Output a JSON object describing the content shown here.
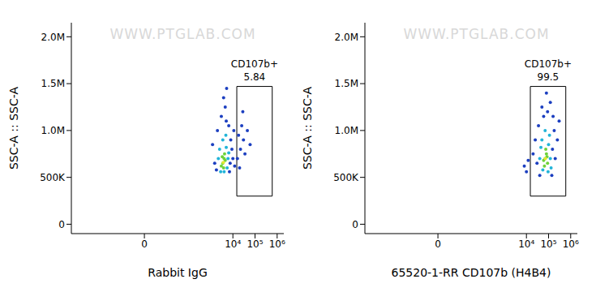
{
  "chart_data": [
    {
      "type": "scatter",
      "watermark": "WWW.PTGLAB.COM",
      "xlabel": "Rabbit IgG",
      "ylabel": "SSC-A :: SSC-A",
      "log": "x",
      "grid": false,
      "xlim": [
        -2000,
        2000000
      ],
      "xticks": [
        0,
        {
          "value": 10000,
          "label": "10⁴"
        },
        {
          "value": 100000,
          "label": "10⁵"
        },
        {
          "value": 1000000,
          "label": "10⁶"
        }
      ],
      "ylim": [
        -100000,
        2150000
      ],
      "yticks": [
        0,
        {
          "value": 500000,
          "label": "500K"
        },
        {
          "value": 1000000,
          "label": "1.0M"
        },
        {
          "value": 1500000,
          "label": "1.5M"
        },
        {
          "value": 2000000,
          "label": "2.0M"
        }
      ],
      "gate": {
        "label": "CD107b+",
        "value": 5.84,
        "xlim": [
          15000,
          600000
        ],
        "ylim": [
          300000,
          1470000
        ]
      },
      "x": [
        3500,
        4000,
        3000,
        4500,
        3800,
        4200,
        3300,
        3700,
        2500,
        5000,
        6000,
        2800,
        5500,
        3500,
        4800,
        2200,
        6500,
        4000,
        1500,
        1200,
        7500,
        8000,
        2000,
        5000,
        6500,
        3000,
        9000,
        1800,
        7000,
        4500,
        3800,
        5200,
        10000,
        11000,
        12000,
        16000,
        18000,
        22000,
        25000,
        30000,
        35000,
        45000,
        60000,
        20000,
        28000
      ],
      "values": [
        650000,
        700000,
        620000,
        680000,
        600000,
        750000,
        720000,
        660000,
        800000,
        820000,
        700000,
        560000,
        600000,
        900000,
        950000,
        700000,
        760000,
        560000,
        650000,
        850000,
        650000,
        900000,
        1000000,
        1100000,
        1050000,
        1150000,
        800000,
        580000,
        560000,
        1250000,
        1350000,
        1450000,
        700000,
        1000000,
        620000,
        700000,
        950000,
        800000,
        1050000,
        900000,
        750000,
        1000000,
        850000,
        600000,
        1200000
      ],
      "colors": [
        "#6fd23a",
        "#6fd23a",
        "#6fd23a",
        "#6fd23a",
        "#6fd23a",
        "#6fd23a",
        "#6fd23a",
        "#e6e832",
        "#22b4d8",
        "#22b4d8",
        "#22b4d8",
        "#22b4d8",
        "#22b4d8",
        "#22b4d8",
        "#22b4d8",
        "#22b4d8",
        "#22b4d8",
        "#22b4d8",
        "#1c3fc0",
        "#1c3fc0",
        "#1c3fc0",
        "#1c3fc0",
        "#1c3fc0",
        "#1c3fc0",
        "#1c3fc0",
        "#1c3fc0",
        "#1c3fc0",
        "#1c3fc0",
        "#1c3fc0",
        "#1c3fc0",
        "#1c3fc0",
        "#1c3fc0",
        "#1c3fc0",
        "#1c3fc0",
        "#1c3fc0",
        "#1c3fc0",
        "#1c3fc0",
        "#1c3fc0",
        "#1c3fc0",
        "#1c3fc0",
        "#1c3fc0",
        "#1c3fc0",
        "#1c3fc0",
        "#1c3fc0",
        "#1c3fc0"
      ]
    },
    {
      "type": "scatter",
      "watermark": "WWW.PTGLAB.COM",
      "xlabel": "65520-1-RR CD107b (H4B4)",
      "ylabel": "SSC-A :: SSC-A",
      "log": "x",
      "grid": false,
      "xlim": [
        -2000,
        2000000
      ],
      "xticks": [
        0,
        {
          "value": 10000,
          "label": "10⁴"
        },
        {
          "value": 100000,
          "label": "10⁵"
        },
        {
          "value": 1000000,
          "label": "10⁶"
        }
      ],
      "ylim": [
        -100000,
        2150000
      ],
      "yticks": [
        0,
        {
          "value": 500000,
          "label": "500K"
        },
        {
          "value": 1000000,
          "label": "1.0M"
        },
        {
          "value": 1500000,
          "label": "1.5M"
        },
        {
          "value": 2000000,
          "label": "2.0M"
        }
      ],
      "gate": {
        "label": "CD107b+",
        "value": 99.5,
        "xlim": [
          15000,
          600000
        ],
        "ylim": [
          300000,
          1470000
        ]
      },
      "x": [
        70000,
        80000,
        60000,
        90000,
        75000,
        65000,
        85000,
        72000,
        50000,
        100000,
        120000,
        40000,
        55000,
        110000,
        70000,
        130000,
        45000,
        95000,
        30000,
        25000,
        35000,
        150000,
        180000,
        200000,
        60000,
        90000,
        120000,
        40000,
        140000,
        250000,
        300000,
        20000,
        80000,
        160000,
        50000,
        8000,
        10000,
        12000
      ],
      "values": [
        700000,
        750000,
        680000,
        650000,
        800000,
        620000,
        720000,
        700000,
        900000,
        850000,
        700000,
        700000,
        580000,
        950000,
        1000000,
        600000,
        820000,
        560000,
        650000,
        900000,
        1050000,
        800000,
        1000000,
        700000,
        1150000,
        1200000,
        1300000,
        520000,
        520000,
        900000,
        1100000,
        750000,
        1400000,
        1150000,
        1250000,
        620000,
        560000,
        680000
      ],
      "colors": [
        "#6fd23a",
        "#6fd23a",
        "#6fd23a",
        "#6fd23a",
        "#6fd23a",
        "#6fd23a",
        "#6fd23a",
        "#e6e832",
        "#22b4d8",
        "#22b4d8",
        "#22b4d8",
        "#22b4d8",
        "#22b4d8",
        "#22b4d8",
        "#22b4d8",
        "#22b4d8",
        "#22b4d8",
        "#22b4d8",
        "#1c3fc0",
        "#1c3fc0",
        "#1c3fc0",
        "#1c3fc0",
        "#1c3fc0",
        "#1c3fc0",
        "#1c3fc0",
        "#1c3fc0",
        "#1c3fc0",
        "#1c3fc0",
        "#1c3fc0",
        "#1c3fc0",
        "#1c3fc0",
        "#1c3fc0",
        "#1c3fc0",
        "#1c3fc0",
        "#1c3fc0",
        "#1c3fc0",
        "#1c3fc0",
        "#1c3fc0"
      ]
    }
  ]
}
